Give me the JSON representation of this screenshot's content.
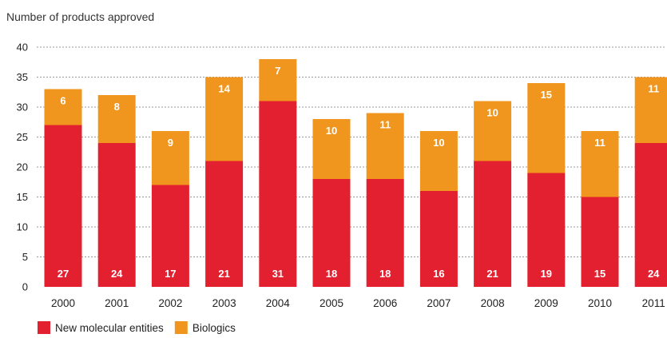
{
  "chart_data": {
    "type": "bar",
    "stacked": true,
    "title": "",
    "ylabel": "Number of products approved",
    "xlabel": "",
    "ylim": [
      0,
      40
    ],
    "yticks": [
      0,
      5,
      10,
      15,
      20,
      25,
      30,
      35,
      40
    ],
    "grid": "horizontal dotted",
    "legend_position": "bottom-left",
    "categories": [
      "2000",
      "2001",
      "2002",
      "2003",
      "2004",
      "2005",
      "2006",
      "2007",
      "2008",
      "2009",
      "2010",
      "2011"
    ],
    "series": [
      {
        "name": "New molecular entities",
        "color": "#e3202f",
        "values": [
          27,
          24,
          17,
          21,
          31,
          18,
          18,
          16,
          21,
          19,
          15,
          24
        ]
      },
      {
        "name": "Biologics",
        "color": "#f0961e",
        "values": [
          6,
          8,
          9,
          14,
          7,
          10,
          11,
          10,
          10,
          15,
          11,
          11
        ]
      }
    ]
  }
}
